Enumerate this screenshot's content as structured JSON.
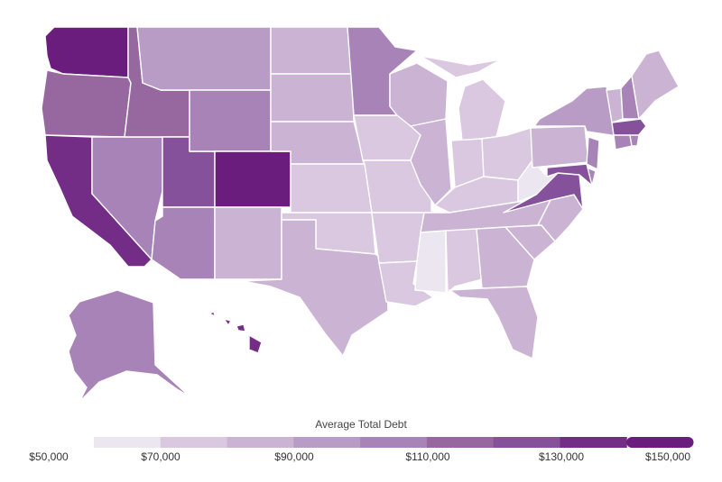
{
  "legend": {
    "title": "Average Total Debt",
    "ticks": [
      "$50,000",
      "$70,000",
      "$90,000",
      "$110,000",
      "$130,000",
      "$150,000"
    ],
    "colors": [
      "#ece6f0",
      "#d9c8df",
      "#cbb4d3",
      "#b99cc6",
      "#a883b8",
      "#96689f",
      "#84519a",
      "#742d86",
      "#6a1d7c"
    ]
  },
  "states": {
    "WA": "#6a1d7c",
    "OR": "#96689f",
    "CA": "#742d86",
    "ID": "#96689f",
    "NV": "#a883b8",
    "UT": "#84519a",
    "AZ": "#a883b8",
    "MT": "#b99cc6",
    "WY": "#a883b8",
    "CO": "#6a1d7c",
    "NM": "#cbb4d3",
    "ND": "#cbb4d3",
    "SD": "#cbb4d3",
    "NE": "#cbb4d3",
    "KS": "#d9c8df",
    "OK": "#d9c8df",
    "TX": "#cbb4d3",
    "MN": "#a883b8",
    "IA": "#d9c8df",
    "MO": "#d9c8df",
    "AR": "#d9c8df",
    "LA": "#d9c8df",
    "WI": "#cbb4d3",
    "IL": "#cbb4d3",
    "MI": "#d9c8df",
    "IN": "#d9c8df",
    "OH": "#d9c8df",
    "KY": "#d9c8df",
    "TN": "#cbb4d3",
    "MS": "#ece6f0",
    "AL": "#d9c8df",
    "GA": "#cbb4d3",
    "FL": "#cbb4d3",
    "SC": "#cbb4d3",
    "NC": "#cbb4d3",
    "VA": "#84519a",
    "WV": "#ece6f0",
    "PA": "#cbb4d3",
    "NY": "#b99cc6",
    "VT": "#cbb4d3",
    "NH": "#a883b8",
    "ME": "#cbb4d3",
    "MA": "#84519a",
    "CT": "#a883b8",
    "RI": "#a883b8",
    "NJ": "#a883b8",
    "DE": "#a883b8",
    "MD": "#84519a",
    "AK": "#a883b8",
    "HI": "#742d86"
  }
}
